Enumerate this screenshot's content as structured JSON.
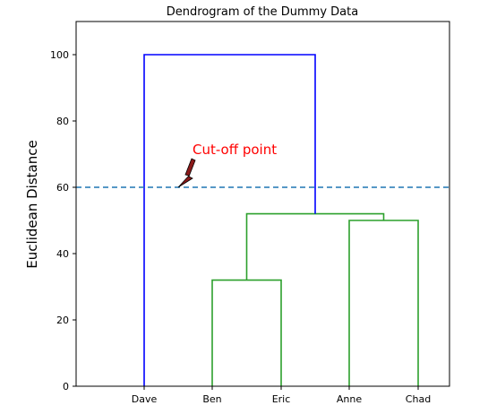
{
  "chart_data": {
    "type": "dendrogram",
    "title": "Dendrogram of the Dummy Data",
    "xlabel": "",
    "ylabel": "Euclidean Distance",
    "ylim": [
      0,
      110
    ],
    "y_ticks": [
      0,
      20,
      40,
      60,
      80,
      100
    ],
    "leaves": [
      "Dave",
      "Ben",
      "Eric",
      "Anne",
      "Chad"
    ],
    "merges": [
      {
        "left": "Ben",
        "right": "Eric",
        "height": 32,
        "color": "#2ca02c"
      },
      {
        "left": "Anne",
        "right": "Chad",
        "height": 50,
        "color": "#2ca02c"
      },
      {
        "left": "Ben+Eric",
        "right": "Anne+Chad",
        "height": 52,
        "color": "#2ca02c"
      },
      {
        "left": "Dave",
        "right": "Ben+Eric+Anne+Chad",
        "height": 100,
        "color": "#0000ff"
      }
    ],
    "cutoff": {
      "y": 60,
      "style": "dashed",
      "color": "#1f77b4"
    },
    "annotation": {
      "text": "Cut-off point",
      "color": "#ff0000",
      "points_to_y": 60,
      "arrow_color": "#8b1a1a"
    },
    "grid": false,
    "legend": "none"
  }
}
